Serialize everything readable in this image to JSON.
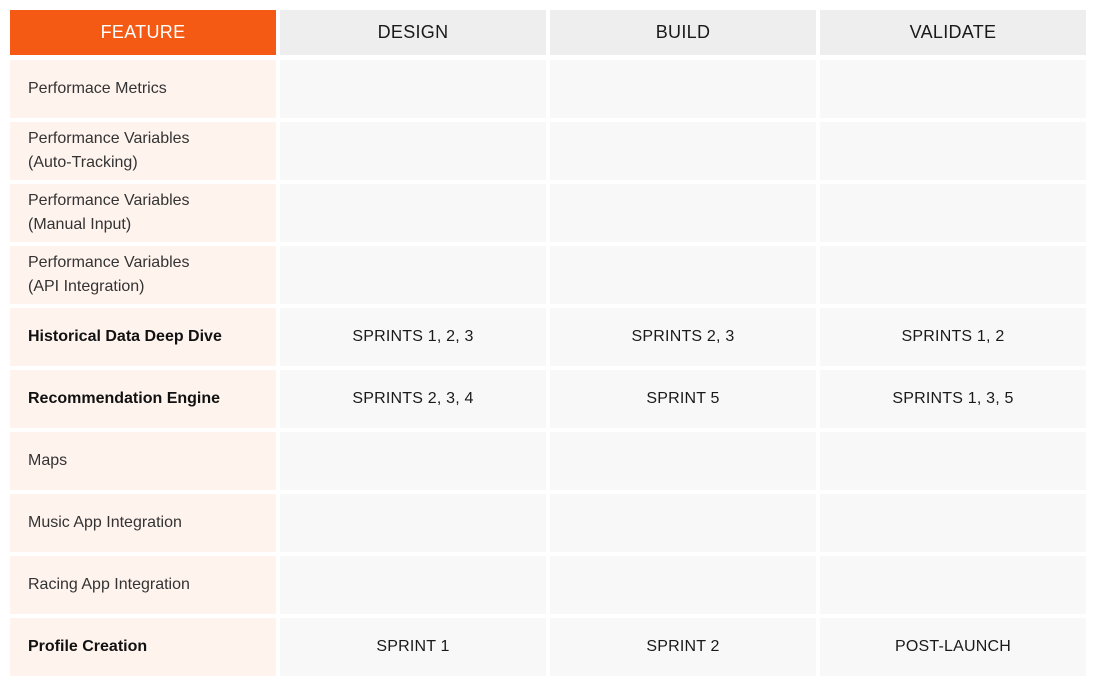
{
  "header": {
    "feature": "FEATURE",
    "design": "DESIGN",
    "build": "BUILD",
    "validate": "VALIDATE"
  },
  "colors": {
    "accent": "#f45a14",
    "feature_cell_bg": "#fff3ee",
    "header_bg": "#eeeeee",
    "value_cell_bg": "#f8f8f8"
  },
  "rows": [
    {
      "feature_line1": "Performace Metrics",
      "feature_line2": "",
      "bold": false,
      "design": "",
      "build": "",
      "validate": ""
    },
    {
      "feature_line1": "Performance Variables",
      "feature_line2": "(Auto-Tracking)",
      "bold": false,
      "design": "",
      "build": "",
      "validate": ""
    },
    {
      "feature_line1": "Performance Variables",
      "feature_line2": "(Manual Input)",
      "bold": false,
      "design": "",
      "build": "",
      "validate": ""
    },
    {
      "feature_line1": "Performance Variables",
      "feature_line2": "(API Integration)",
      "bold": false,
      "design": "",
      "build": "",
      "validate": ""
    },
    {
      "feature_line1": "Historical Data Deep Dive",
      "feature_line2": "",
      "bold": true,
      "design": "SPRINTS 1, 2, 3",
      "build": "SPRINTS 2, 3",
      "validate": "SPRINTS 1, 2"
    },
    {
      "feature_line1": "Recommendation Engine",
      "feature_line2": "",
      "bold": true,
      "design": "SPRINTS 2, 3, 4",
      "build": "SPRINT 5",
      "validate": "SPRINTS 1, 3, 5"
    },
    {
      "feature_line1": "Maps",
      "feature_line2": "",
      "bold": false,
      "design": "",
      "build": "",
      "validate": ""
    },
    {
      "feature_line1": "Music App Integration",
      "feature_line2": "",
      "bold": false,
      "design": "",
      "build": "",
      "validate": ""
    },
    {
      "feature_line1": "Racing App Integration",
      "feature_line2": "",
      "bold": false,
      "design": "",
      "build": "",
      "validate": ""
    },
    {
      "feature_line1": "Profile Creation",
      "feature_line2": "",
      "bold": true,
      "design": "SPRINT 1",
      "build": "SPRINT 2",
      "validate": "POST-LAUNCH"
    }
  ]
}
